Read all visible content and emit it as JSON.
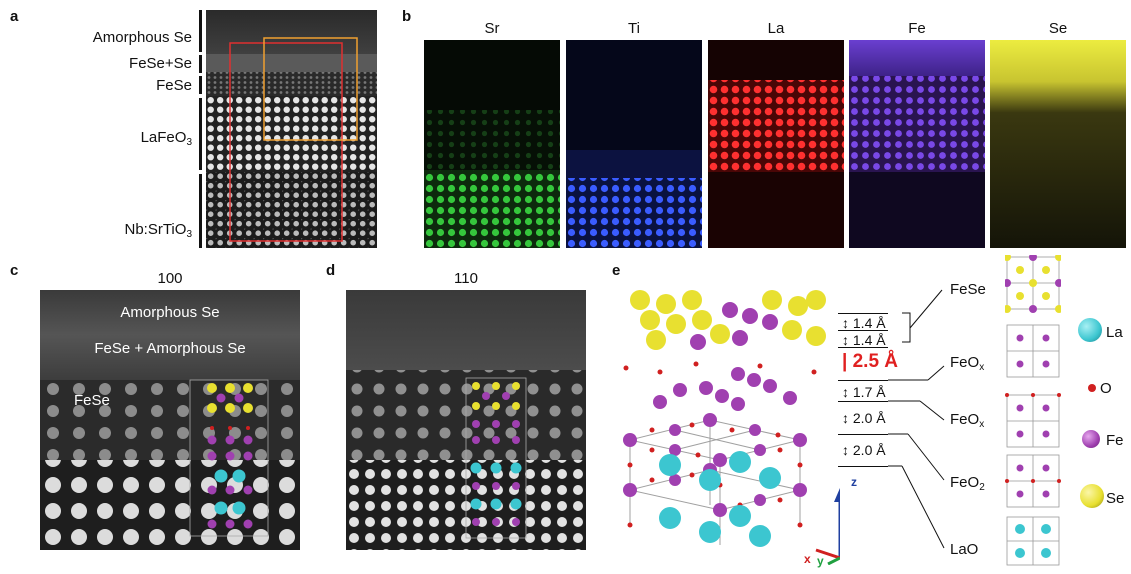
{
  "panels": {
    "a": {
      "label": "a"
    },
    "b": {
      "label": "b"
    },
    "c": {
      "label": "c",
      "title": "100"
    },
    "d": {
      "label": "d",
      "title": "110"
    },
    "e": {
      "label": "e"
    }
  },
  "panel_a": {
    "layers": [
      {
        "name": "Amorphous Se"
      },
      {
        "name": "FeSe+Se"
      },
      {
        "name": "FeSe"
      },
      {
        "name": "LaFeO",
        "sub": "3"
      },
      {
        "name": "Nb:SrTiO",
        "sub": "3"
      }
    ]
  },
  "panel_b": {
    "maps": [
      {
        "element": "Sr",
        "color": "#2fd43a"
      },
      {
        "element": "Ti",
        "color": "#3a5cff"
      },
      {
        "element": "La",
        "color": "#ff2a2a"
      },
      {
        "element": "Fe",
        "color": "#8a4dff"
      },
      {
        "element": "Se",
        "color": "#e8e23a"
      }
    ]
  },
  "panel_c": {
    "overlay": {
      "amorphous": "Amorphous Se",
      "fese_amorphous": "FeSe + Amorphous Se",
      "fese": "FeSe"
    }
  },
  "panel_e": {
    "layer_labels": {
      "fese": "FeSe",
      "feox1": {
        "name": "FeO",
        "sub": "x"
      },
      "feox2": {
        "name": "FeO",
        "sub": "x"
      },
      "feo2": {
        "name": "FeO",
        "sub": "2"
      },
      "lao": "LaO"
    },
    "distances": {
      "d1": "1.4 Å",
      "d2": "1.4 Å",
      "d3": "2.5 Å",
      "d4": "1.7 Å",
      "d5": "2.0 Å",
      "d6": "2.0 Å"
    },
    "axes": {
      "z": "z",
      "x": "x",
      "y": "y"
    },
    "legend": {
      "la": "La",
      "o": "O",
      "fe": "Fe",
      "se": "Se"
    },
    "colors": {
      "la": "#3cc6d0",
      "o": "#d02020",
      "fe": "#a040b0",
      "se": "#e8e030",
      "highlight": "#e02020"
    }
  }
}
